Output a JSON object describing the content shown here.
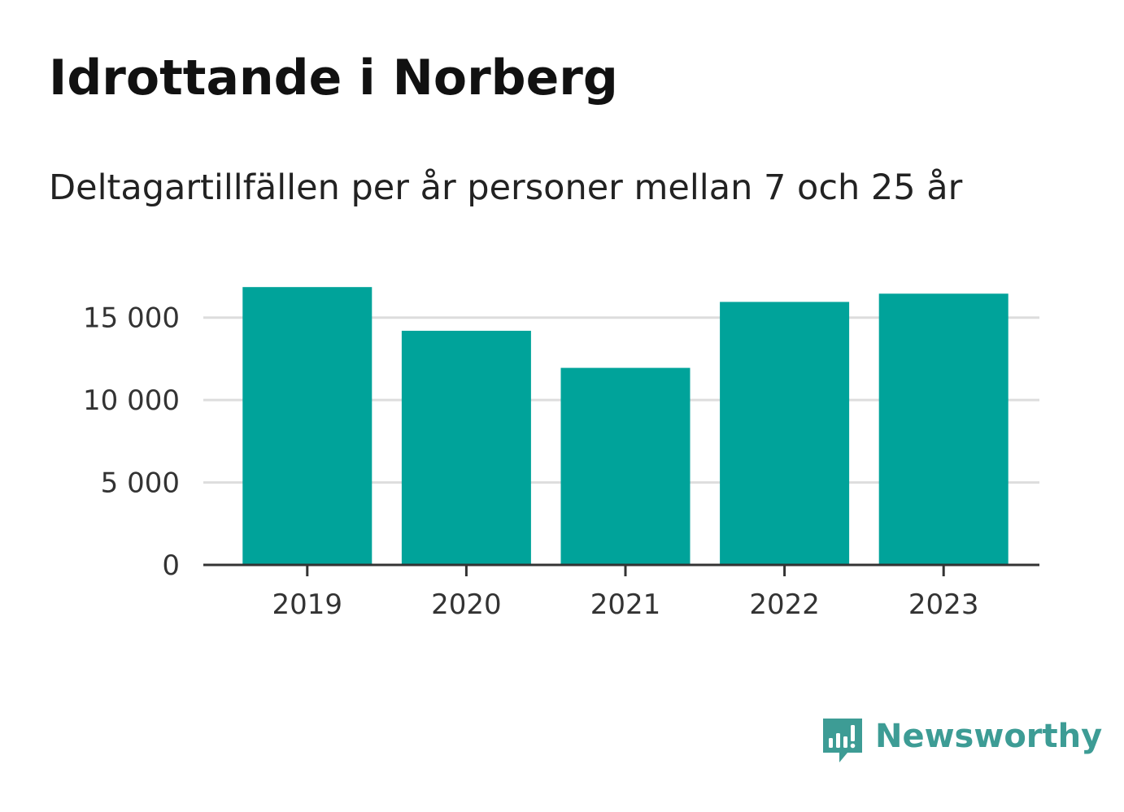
{
  "title": "Idrottande i Norberg",
  "subtitle": "Deltagartillfällen per år personer mellan 7 och 25 år",
  "brand": {
    "name": "Newsworthy",
    "icon": "newsworthy-logo-icon",
    "color": "#3d9c95"
  },
  "chart_data": {
    "type": "bar",
    "title": "Idrottande i Norberg",
    "subtitle": "Deltagartillfällen per år personer mellan 7 och 25 år",
    "categories": [
      "2019",
      "2020",
      "2021",
      "2022",
      "2023"
    ],
    "values": [
      16850,
      14200,
      11950,
      15950,
      16450
    ],
    "ylim": [
      0,
      17500
    ],
    "yticks": [
      0,
      5000,
      10000,
      15000
    ],
    "ytick_labels": [
      "0",
      "5 000",
      "10 000",
      "15 000"
    ],
    "grid": true,
    "legend": "none",
    "bar_color": "#00a39a",
    "axis_color": "#333333",
    "grid_color": "#dddddd"
  }
}
